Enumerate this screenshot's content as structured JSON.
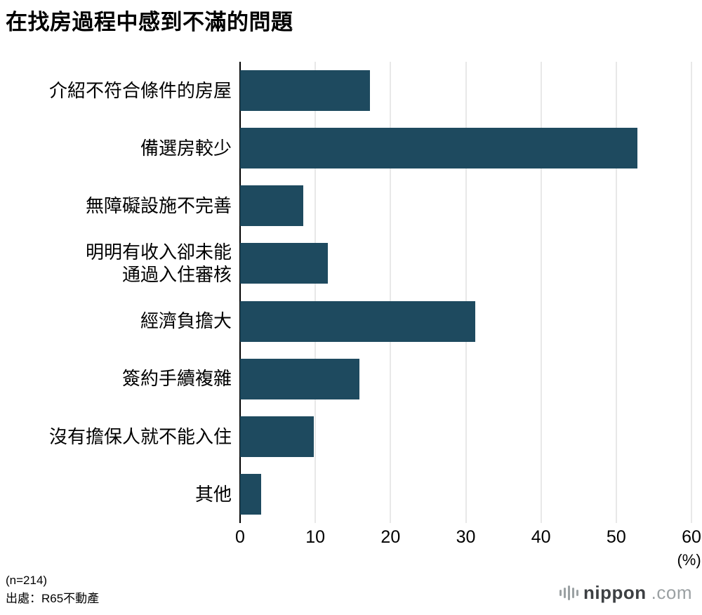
{
  "title": "在找房過程中感到不滿的問題",
  "chart_data": {
    "type": "bar",
    "orientation": "horizontal",
    "title": "在找房過程中感到不滿的問題",
    "categories": [
      "介紹不符合條件的房屋",
      "備選房較少",
      "無障礙設施不完善",
      "明明有收入卻未能\n通過入住審核",
      "經濟負擔大",
      "簽約手續複雜",
      "沒有擔保人就不能入住",
      "其他"
    ],
    "values": [
      17.3,
      52.8,
      8.4,
      11.7,
      31.3,
      15.9,
      9.8,
      2.8
    ],
    "xlim": [
      0,
      60
    ],
    "x_ticks": [
      "0",
      "10",
      "20",
      "30",
      "40",
      "50",
      "60"
    ],
    "x_unit": "(%)",
    "grid": true,
    "legend": "none",
    "bar_color": "#1e4a5f",
    "gridline_color": "#d0d0d0"
  },
  "footer": {
    "sample_size": "(n=214)",
    "source": "出處：R65不動產"
  },
  "branding": {
    "logo_icon": "soundwave-icon",
    "name": "nippon",
    "suffix": ".com"
  }
}
